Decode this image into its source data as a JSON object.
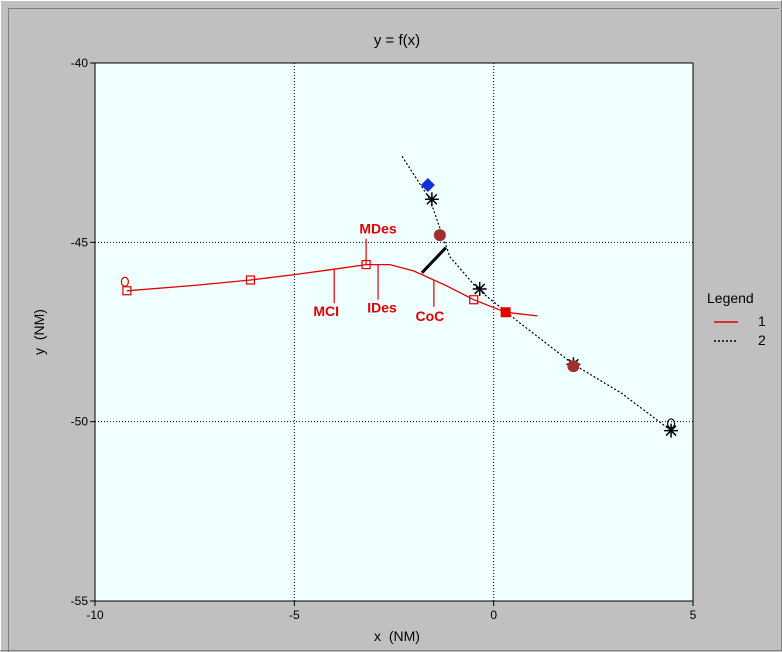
{
  "chart_data": {
    "type": "line",
    "title": "y = f(x)",
    "xlabel": "x  (NM)",
    "ylabel": "y  (NM)",
    "xlim": [
      -10,
      5
    ],
    "ylim": [
      -55,
      -40
    ],
    "xticks": [
      -10,
      -5,
      0,
      5
    ],
    "yticks": [
      -55,
      -50,
      -45,
      -40
    ],
    "grid": true,
    "plot_background": "#f0ffff",
    "legend": {
      "title": "Legend",
      "placement": "right"
    },
    "series": [
      {
        "name": "1",
        "color": "#e00000",
        "style": "solid",
        "points": [
          [
            -9.2,
            -46.35
          ],
          [
            -7.5,
            -46.2
          ],
          [
            -6.1,
            -46.05
          ],
          [
            -5.0,
            -45.9
          ],
          [
            -4.0,
            -45.75
          ],
          [
            -3.2,
            -45.62
          ],
          [
            -2.6,
            -45.62
          ],
          [
            -2.0,
            -45.8
          ],
          [
            -1.2,
            -46.2
          ],
          [
            -0.5,
            -46.6
          ],
          [
            0.3,
            -46.95
          ],
          [
            1.1,
            -47.05
          ]
        ],
        "square_markers": [
          [
            -9.2,
            -46.35
          ],
          [
            -6.1,
            -46.05
          ],
          [
            -3.2,
            -45.62
          ],
          [
            -0.5,
            -46.6
          ]
        ],
        "filled_square": [
          0.3,
          -46.95
        ],
        "start_circle": [
          -9.25,
          -46.1
        ]
      },
      {
        "name": "2",
        "color": "#000000",
        "style": "dotted",
        "points": [
          [
            -2.3,
            -42.6
          ],
          [
            -1.6,
            -43.8
          ],
          [
            -1.1,
            -45.4
          ],
          [
            -0.4,
            -46.3
          ],
          [
            0.6,
            -47.2
          ],
          [
            2.0,
            -48.4
          ],
          [
            3.2,
            -49.2
          ],
          [
            4.45,
            -50.25
          ]
        ],
        "star_markers": [
          [
            -1.55,
            -43.8
          ],
          [
            -0.35,
            -46.3
          ],
          [
            2.0,
            -48.4
          ],
          [
            4.45,
            -50.25
          ]
        ],
        "end_circle": [
          4.45,
          -50.05
        ]
      }
    ],
    "markers": {
      "diamond": {
        "at": [
          -1.65,
          -43.4
        ],
        "color": "#1030e0"
      },
      "brown_dots": {
        "points": [
          [
            -1.35,
            -44.8
          ],
          [
            2.0,
            -48.45
          ]
        ],
        "color": "#a03030"
      }
    },
    "connector_line": {
      "from": [
        -1.8,
        -45.85
      ],
      "to": [
        -1.2,
        -45.15
      ],
      "color": "#000000"
    },
    "annotations": [
      {
        "text": "MDes",
        "label_at": [
          -2.9,
          -44.75
        ],
        "tip": [
          -3.2,
          -45.62
        ],
        "anchor": [
          -3.2,
          -44.9
        ]
      },
      {
        "text": "MCI",
        "label_at": [
          -4.2,
          -47.05
        ],
        "tip": [
          -4.0,
          -45.75
        ],
        "anchor": [
          -4.0,
          -46.7
        ]
      },
      {
        "text": "IDes",
        "label_at": [
          -2.8,
          -46.95
        ],
        "tip": [
          -2.9,
          -45.62
        ],
        "anchor": [
          -2.9,
          -46.6
        ]
      },
      {
        "text": "CoC",
        "label_at": [
          -1.6,
          -47.2
        ],
        "tip": [
          -1.5,
          -46.05
        ],
        "anchor": [
          -1.5,
          -46.8
        ]
      }
    ]
  }
}
